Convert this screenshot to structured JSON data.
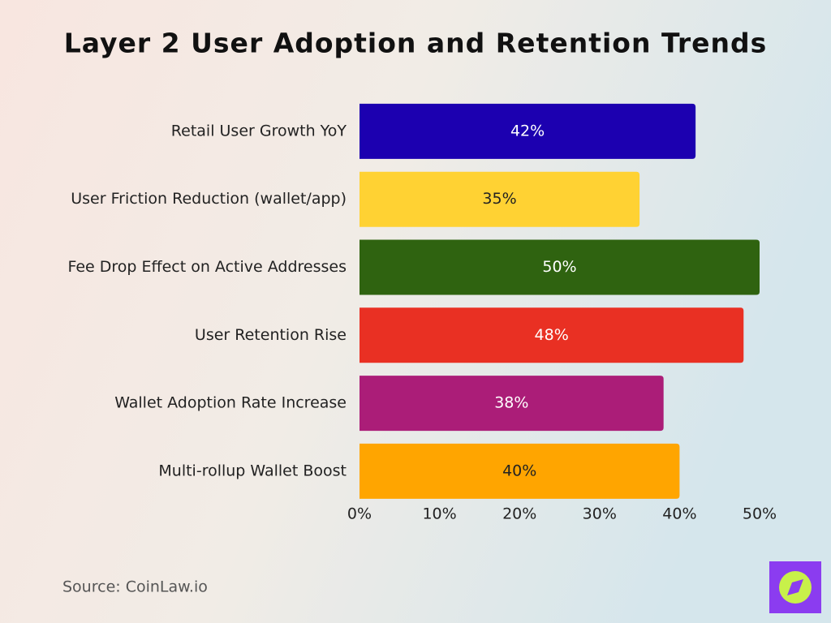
{
  "chart_data": {
    "type": "bar",
    "orientation": "horizontal",
    "title": "Layer 2 User Adoption and Retention Trends",
    "source": "Source: CoinLaw.io",
    "categories": [
      "Retail User Growth YoY",
      "User Friction Reduction (wallet/app)",
      "Fee Drop Effect on Active Addresses",
      "User Retention Rise",
      "Wallet Adoption Rate Increase",
      "Multi-rollup Wallet Boost"
    ],
    "values": [
      42,
      35,
      50,
      48,
      38,
      40
    ],
    "value_labels": [
      "42%",
      "35%",
      "50%",
      "48%",
      "38%",
      "40%"
    ],
    "colors": [
      "#1c00b0",
      "#ffd233",
      "#2f6310",
      "#e93023",
      "#ab1d78",
      "#ffa500"
    ],
    "xlim": [
      0,
      50
    ],
    "xticks": [
      {
        "value": 0,
        "label": "0%"
      },
      {
        "value": 10,
        "label": "10%"
      },
      {
        "value": 20,
        "label": "20%"
      },
      {
        "value": 30,
        "label": "30%"
      },
      {
        "value": 40,
        "label": "40%"
      },
      {
        "value": 50,
        "label": "50%"
      }
    ],
    "grid": false
  }
}
